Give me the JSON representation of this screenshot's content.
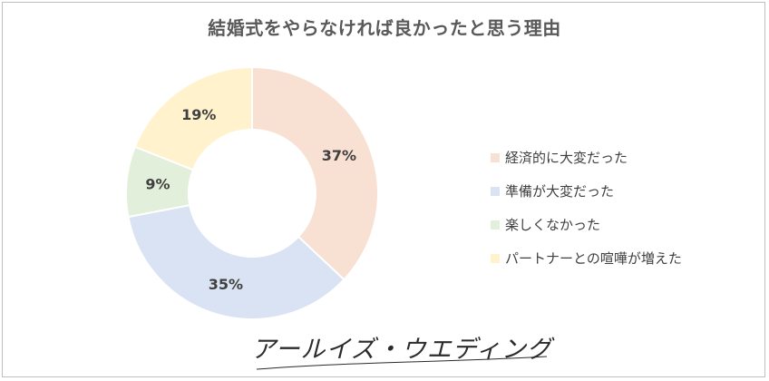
{
  "title": "結婚式をやらなければ良かったと思う理由",
  "brand": {
    "text": "アールイズ・ウエディング"
  },
  "chart_data": {
    "type": "pie",
    "donut": true,
    "legend_position": "right",
    "slices": [
      {
        "label": "経済的に大変だった",
        "value": 37,
        "display": "37%",
        "color": "#f8e0d3"
      },
      {
        "label": "準備が大変だった",
        "value": 35,
        "display": "35%",
        "color": "#dae3f3"
      },
      {
        "label": "楽しくなかった",
        "value": 9,
        "display": "9%",
        "color": "#e2efda"
      },
      {
        "label": "パートナーとの喧嘩が増えた",
        "value": 19,
        "display": "19%",
        "color": "#fff2cc"
      }
    ]
  }
}
